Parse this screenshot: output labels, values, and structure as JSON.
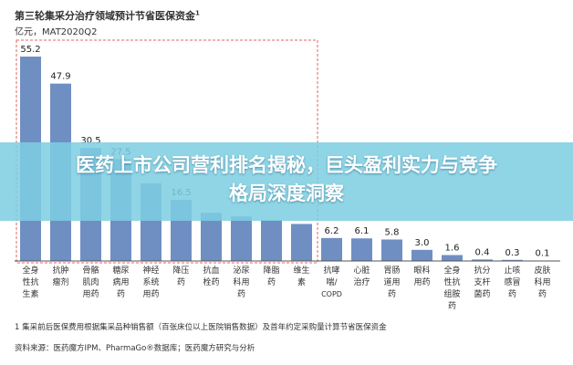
{
  "title": "第三轮集采分治疗领域预计节省医保资金",
  "title_mark": "1",
  "subtitle": "亿元，MAT2020Q2",
  "footnote": "1 集采前后医保费用根据集采品种销售额（百张床位以上医院销售数据）及首年约定采购量计算节省医保资金",
  "source": "资料来源：医药魔方IPM、PharmaGo®数据库；医药魔方研究与分析",
  "banner": {
    "line1": "医药上市公司营利排名揭秘，巨头盈利实力与竞争",
    "line2": "格局深度洞察"
  },
  "colors": {
    "bar": "#6f8fc3",
    "bar_top": "#5b7db8",
    "dashed_box": "#e06666",
    "banner": "#7dcee2"
  },
  "chart_data": {
    "type": "bar",
    "title": "第三轮集采分治疗领域预计节省医保资金",
    "ylabel": "亿元，MAT2020Q2",
    "categories": [
      "全身性抗生素",
      "抗肿瘤剂",
      "骨骼肌肉用药",
      "糖尿病用药",
      "神经系统用药",
      "降压药",
      "抗血栓药",
      "泌尿科用药",
      "降脂药",
      "维生素",
      "抗哮喘/COPD",
      "心脏治疗",
      "胃肠道用药",
      "眼科用药",
      "全身性抗组胺药",
      "抗分支杆菌药",
      "止咳/感冒药",
      "皮肤科用药"
    ],
    "category_lines": [
      [
        "全身",
        "性抗",
        "生素"
      ],
      [
        "抗肿",
        "瘤剂"
      ],
      [
        "骨骼",
        "肌肉",
        "用药"
      ],
      [
        "糖尿",
        "病用",
        "药"
      ],
      [
        "神经",
        "系统",
        "用药"
      ],
      [
        "降压",
        "药"
      ],
      [
        "抗血",
        "栓药"
      ],
      [
        "泌尿",
        "科用",
        "药"
      ],
      [
        "降脂",
        "药"
      ],
      [
        "维生",
        "素"
      ],
      [
        "抗哮",
        "喘/",
        "COPD"
      ],
      [
        "心脏",
        "治疗"
      ],
      [
        "胃肠",
        "道用",
        "药"
      ],
      [
        "眼科",
        "用药"
      ],
      [
        "全身",
        "性抗",
        "组胺",
        "药"
      ],
      [
        "抗分",
        "支杆",
        "菌药"
      ],
      [
        "止咳",
        "感冒",
        "药"
      ],
      [
        "皮肤",
        "科用",
        "药"
      ]
    ],
    "values": [
      55.2,
      47.9,
      30.5,
      27.5,
      21.0,
      16.5,
      13.0,
      12.0,
      11.0,
      10.0,
      6.2,
      6.1,
      5.8,
      3.0,
      1.6,
      0.4,
      0.3,
      0.1
    ],
    "value_labels": [
      "55.2",
      "47.9",
      "30.5",
      "27.5",
      "",
      "16.5",
      "",
      "",
      "",
      "",
      "6.2",
      "6.1",
      "5.8",
      "3.0",
      "1.6",
      "0.4",
      "0.3",
      "0.1"
    ],
    "ylim": [
      0,
      58
    ],
    "grid": false
  }
}
